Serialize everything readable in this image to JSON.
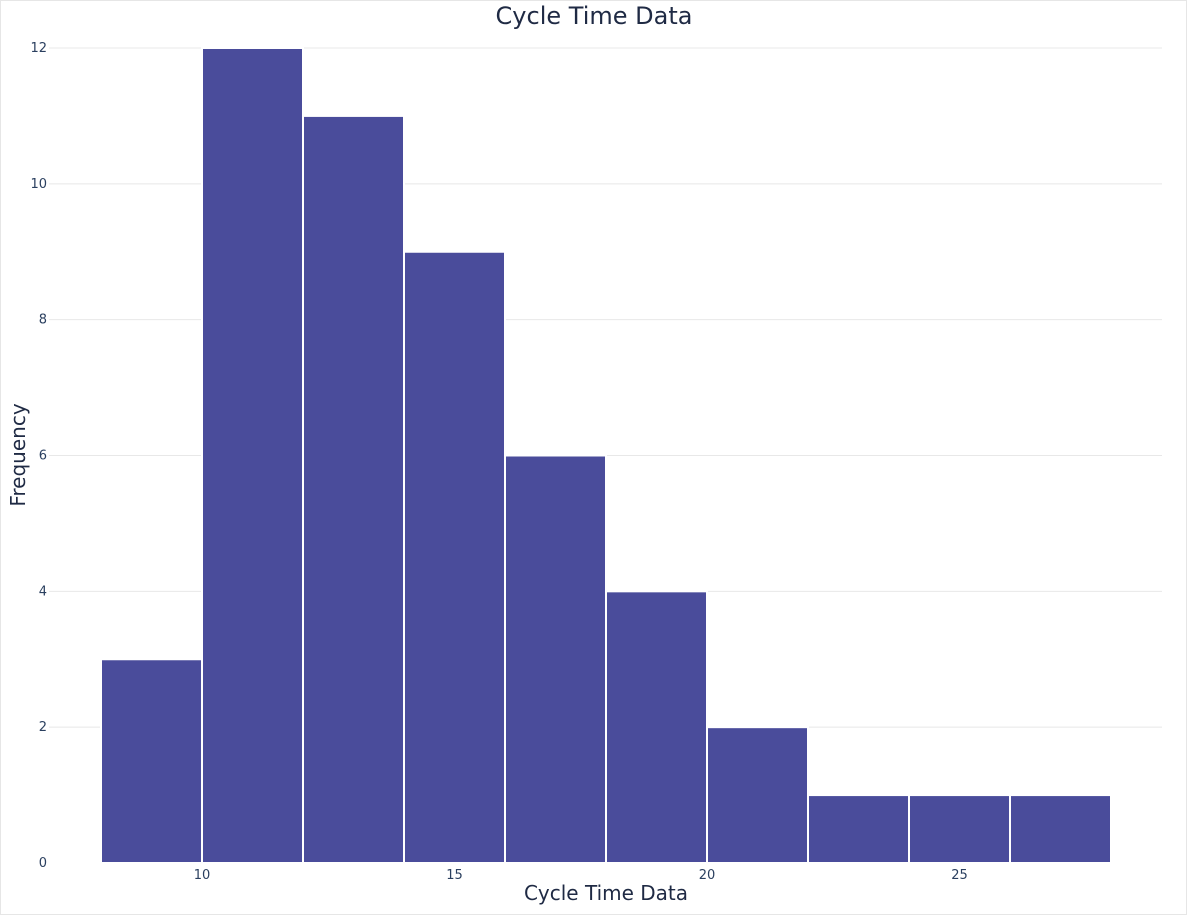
{
  "chart_data": {
    "type": "bar",
    "title": "Cycle Time Data",
    "xlabel": "Cycle Time Data",
    "ylabel": "Frequency",
    "bin_edges": [
      8,
      10,
      12,
      14,
      16,
      18,
      20,
      22,
      24,
      26,
      28
    ],
    "values": [
      3,
      12,
      11,
      9,
      6,
      4,
      2,
      1,
      1,
      1
    ],
    "xlim": [
      8,
      28
    ],
    "ylim": [
      0,
      12
    ],
    "x_ticks": [
      10,
      15,
      20,
      25
    ],
    "y_ticks": [
      0,
      2,
      4,
      6,
      8,
      10,
      12
    ],
    "grid": true,
    "bar_color": "#4a4c9b"
  }
}
